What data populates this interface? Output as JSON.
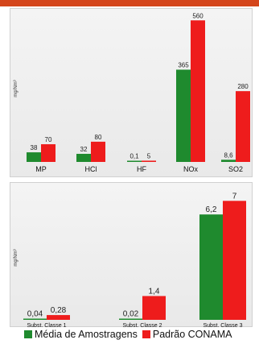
{
  "chart_data": [
    {
      "type": "bar",
      "ylabel": "mg/Nm³",
      "categories": [
        "MP",
        "HCl",
        "HF",
        "NOx",
        "SO2"
      ],
      "series": [
        {
          "name": "Média de Amostragens",
          "color": "#1f8a2e",
          "values": [
            38,
            32,
            0.1,
            365,
            8.6
          ],
          "labels": [
            "38",
            "32",
            "0,1",
            "365",
            "8,6"
          ]
        },
        {
          "name": "Padrão CONAMA",
          "color": "#ee1c1c",
          "values": [
            70,
            80,
            5,
            560,
            280
          ],
          "labels": [
            "70",
            "80",
            "5",
            "560",
            "280"
          ]
        }
      ],
      "ylim": [
        0,
        580
      ]
    },
    {
      "type": "bar",
      "ylabel": "mg/Nm³",
      "categories": [
        "Subst. Classe 1",
        "Subst. Classe 2",
        "Subst. Classe 3"
      ],
      "series": [
        {
          "name": "Média de Amostragens",
          "color": "#1f8a2e",
          "values": [
            0.04,
            0.02,
            6.2
          ],
          "labels": [
            "0,04",
            "0,02",
            "6,2"
          ]
        },
        {
          "name": "Padrão CONAMA",
          "color": "#ee1c1c",
          "values": [
            0.28,
            1.4,
            7
          ],
          "labels": [
            "0,28",
            "1,4",
            "7"
          ]
        }
      ],
      "ylim": [
        0,
        7.3
      ]
    }
  ],
  "legend": {
    "items": [
      {
        "label": "Média de Amostragens",
        "color": "#1f8a2e"
      },
      {
        "label": "Padrão CONAMA",
        "color": "#ee1c1c"
      }
    ]
  }
}
